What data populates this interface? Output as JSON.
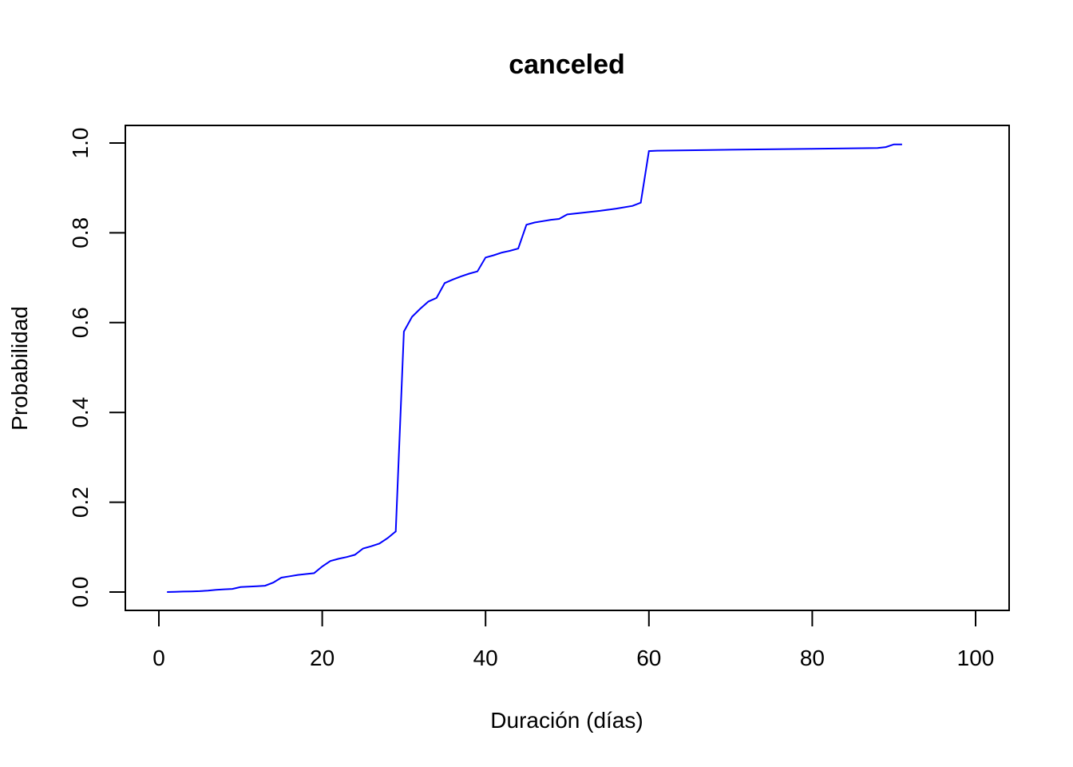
{
  "chart_data": {
    "type": "line",
    "title": "canceled",
    "xlabel": "Duración (días)",
    "ylabel": "Probabilidad",
    "xlim": [
      0,
      100
    ],
    "ylim": [
      0,
      1
    ],
    "x_ticks": [
      0,
      20,
      40,
      60,
      80,
      100
    ],
    "x_tick_labels": [
      "0",
      "20",
      "40",
      "60",
      "80",
      "100"
    ],
    "y_ticks": [
      0,
      0.2,
      0.4,
      0.6,
      0.8,
      1
    ],
    "y_tick_labels": [
      "0.0",
      "0.2",
      "0.4",
      "0.6",
      "0.8",
      "1.0"
    ],
    "grid": false,
    "series": [
      {
        "color": "#0000ff",
        "x": [
          1,
          2,
          3,
          4,
          5,
          6,
          7,
          8,
          9,
          10,
          11,
          12,
          13,
          14,
          15,
          16,
          17,
          18,
          19,
          20,
          21,
          22,
          23,
          24,
          25,
          26,
          27,
          28,
          29,
          30,
          31,
          32,
          33,
          34,
          35,
          36,
          37,
          38,
          39,
          40,
          41,
          42,
          43,
          44,
          45,
          46,
          47,
          48,
          49,
          50,
          52,
          54,
          56,
          58,
          59,
          60,
          61,
          70,
          80,
          88,
          89,
          90,
          91
        ],
        "y": [
          0.0,
          0.0005,
          0.001,
          0.0015,
          0.002,
          0.003,
          0.005,
          0.006,
          0.007,
          0.011,
          0.012,
          0.013,
          0.014,
          0.021,
          0.032,
          0.035,
          0.038,
          0.04,
          0.042,
          0.057,
          0.069,
          0.074,
          0.078,
          0.083,
          0.097,
          0.102,
          0.108,
          0.12,
          0.135,
          0.58,
          0.613,
          0.631,
          0.647,
          0.655,
          0.688,
          0.696,
          0.703,
          0.709,
          0.714,
          0.745,
          0.75,
          0.756,
          0.76,
          0.765,
          0.818,
          0.823,
          0.826,
          0.829,
          0.831,
          0.841,
          0.845,
          0.849,
          0.854,
          0.86,
          0.867,
          0.982,
          0.983,
          0.985,
          0.987,
          0.989,
          0.991,
          0.997,
          0.997
        ]
      }
    ]
  }
}
